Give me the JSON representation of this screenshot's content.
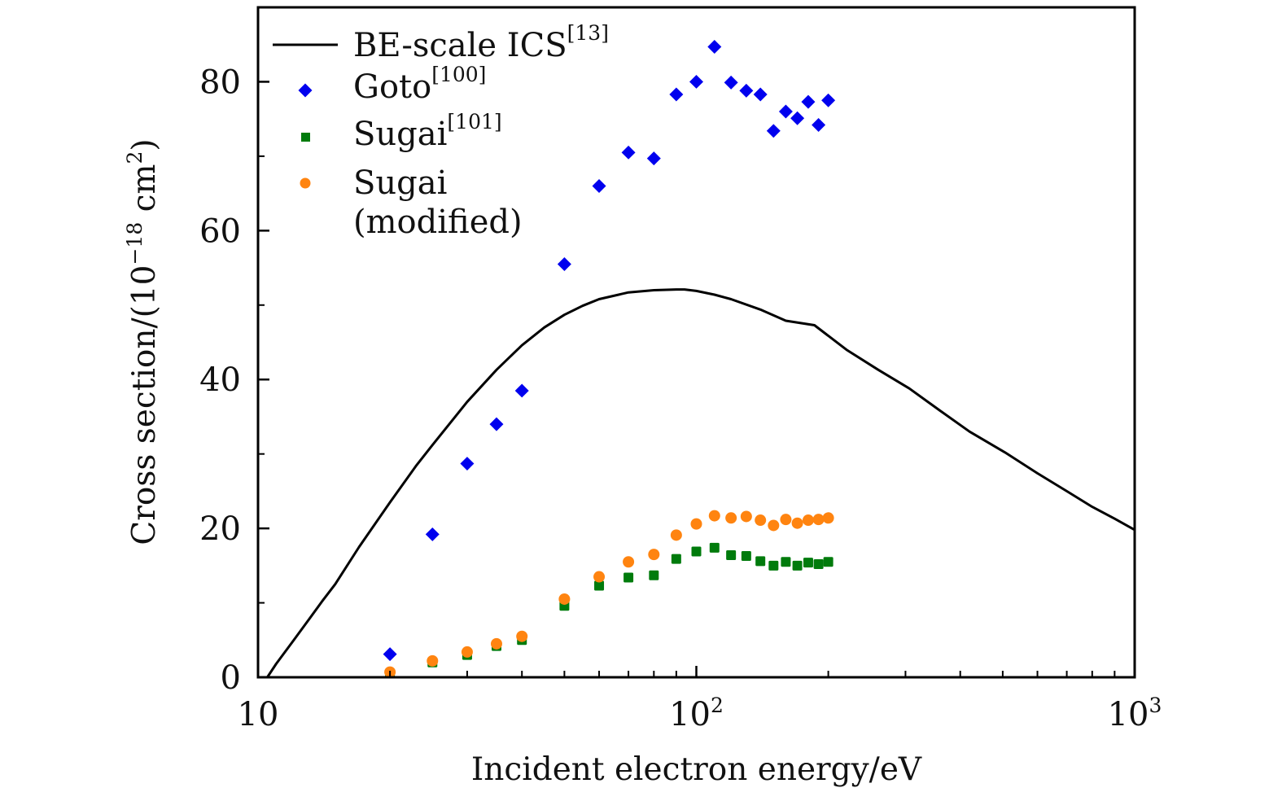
{
  "chart_data": {
    "type": "scatter",
    "title": "",
    "xlabel": "Incident electron energy/eV",
    "ylabel": "Cross section/(10⁻¹⁸ cm²)",
    "ylabel_parts": {
      "main": "Cross section/(10",
      "exp": "−18",
      "unit": " cm",
      "unit_exp": "2",
      "close": ")"
    },
    "xscale": "log",
    "xlim": [
      10,
      1000
    ],
    "ylim": [
      0,
      90
    ],
    "grid": false,
    "legend_position": "top-left",
    "x_ticks": [
      {
        "value": 10,
        "base": "10",
        "exp": ""
      },
      {
        "value": 100,
        "base": "10",
        "exp": "2"
      },
      {
        "value": 1000,
        "base": "10",
        "exp": "3"
      }
    ],
    "x_minor_ticks": [
      20,
      30,
      40,
      50,
      60,
      70,
      80,
      90,
      200,
      300,
      400,
      500,
      600,
      700,
      800,
      900
    ],
    "y_ticks": [
      0,
      20,
      40,
      60,
      80
    ],
    "y_minor_ticks": [
      10,
      30,
      50,
      70
    ],
    "series": [
      {
        "name": "BE-scale ICS",
        "ref": "[13]",
        "kind": "line",
        "color": "#000000",
        "x": [
          10.5,
          11,
          12,
          13,
          14,
          15,
          17,
          20,
          23,
          25,
          30,
          35,
          40,
          45,
          50,
          55,
          60,
          70,
          80,
          90,
          94,
          100,
          110,
          120,
          140,
          160,
          186,
          220,
          260,
          306,
          360,
          420,
          506,
          600,
          700,
          800,
          900,
          1000
        ],
        "y": [
          0,
          1.8,
          4.8,
          7.6,
          10.2,
          12.5,
          17.5,
          23.5,
          28.5,
          31.2,
          37.0,
          41.3,
          44.6,
          47.0,
          48.7,
          49.9,
          50.8,
          51.7,
          52.0,
          52.1,
          52.1,
          51.9,
          51.4,
          50.8,
          49.4,
          47.9,
          47.3,
          44.0,
          41.3,
          38.8,
          35.8,
          33.0,
          30.2,
          27.4,
          25.0,
          22.9,
          21.3,
          19.8
        ]
      },
      {
        "name": "Goto",
        "ref": "[100]",
        "kind": "diamond",
        "color": "#0000ee",
        "x": [
          20,
          25,
          30,
          35,
          40,
          50,
          60,
          70,
          80,
          90,
          100,
          110,
          120,
          130,
          140,
          150,
          160,
          170,
          180,
          190,
          200
        ],
        "y": [
          3.1,
          19.2,
          28.7,
          34.0,
          38.5,
          55.5,
          66.0,
          70.5,
          69.7,
          78.3,
          80.0,
          84.7,
          79.9,
          78.8,
          78.3,
          73.4,
          76.0,
          75.1,
          77.3,
          74.2,
          77.5
        ]
      },
      {
        "name": "Sugai",
        "ref": "[101]",
        "kind": "square",
        "color": "#007b0c",
        "x": [
          20,
          25,
          30,
          35,
          40,
          50,
          60,
          70,
          80,
          90,
          100,
          110,
          120,
          130,
          140,
          150,
          160,
          170,
          180,
          190,
          200
        ],
        "y": [
          0.5,
          2.0,
          3.0,
          4.2,
          5.0,
          9.6,
          12.3,
          13.4,
          13.7,
          15.9,
          16.9,
          17.4,
          16.4,
          16.3,
          15.6,
          15.0,
          15.5,
          15.0,
          15.4,
          15.2,
          15.5
        ]
      },
      {
        "name": "Sugai (modified)",
        "ref": "",
        "kind": "circle",
        "color": "#ff8410",
        "x": [
          20,
          25,
          30,
          35,
          40,
          50,
          60,
          70,
          80,
          90,
          100,
          110,
          120,
          130,
          140,
          150,
          160,
          170,
          180,
          190,
          200
        ],
        "y": [
          0.7,
          2.2,
          3.4,
          4.5,
          5.5,
          10.5,
          13.5,
          15.5,
          16.5,
          19.1,
          20.6,
          21.7,
          21.4,
          21.6,
          21.1,
          20.4,
          21.2,
          20.7,
          21.1,
          21.2,
          21.4
        ]
      }
    ]
  },
  "legend": {
    "items": [
      {
        "label": "BE-scale ICS",
        "ref": "[13]"
      },
      {
        "label": "Goto",
        "ref": "[100]"
      },
      {
        "label": "Sugai",
        "ref": "[101]"
      },
      {
        "label": "Sugai",
        "label2": "(modified)",
        "ref": ""
      }
    ]
  }
}
